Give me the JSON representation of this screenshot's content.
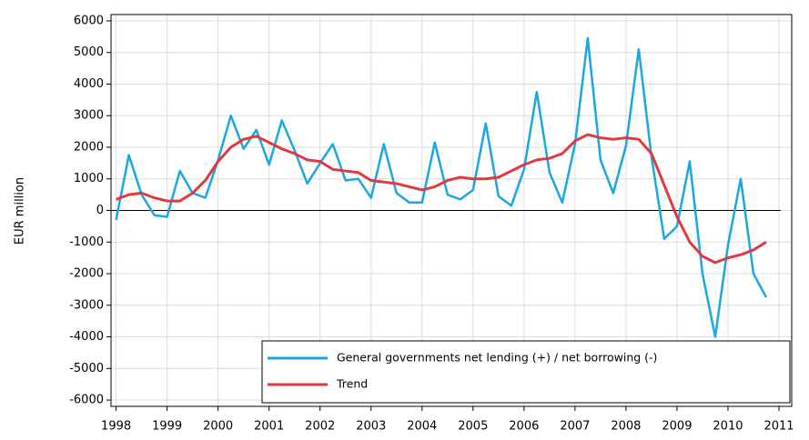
{
  "chart_data": {
    "type": "line",
    "y_label": "EUR million",
    "x": [
      1998,
      1998.25,
      1998.5,
      1998.75,
      1999,
      1999.25,
      1999.5,
      1999.75,
      2000,
      2000.25,
      2000.5,
      2000.75,
      2001,
      2001.25,
      2001.5,
      2001.75,
      2002,
      2002.25,
      2002.5,
      2002.75,
      2003,
      2003.25,
      2003.5,
      2003.75,
      2004,
      2004.25,
      2004.5,
      2004.75,
      2005,
      2005.25,
      2005.5,
      2005.75,
      2006,
      2006.25,
      2006.5,
      2006.75,
      2007,
      2007.25,
      2007.5,
      2007.75,
      2008,
      2008.25,
      2008.5,
      2008.75,
      2009,
      2009.25,
      2009.5,
      2009.75,
      2010,
      2010.25,
      2010.5,
      2010.75
    ],
    "series": [
      {
        "name": "General governments net lending (+) / net borrowing (-)",
        "color": "#1ba7e0",
        "values": [
          -300,
          1750,
          500,
          -150,
          -200,
          1250,
          550,
          400,
          1600,
          3000,
          1950,
          2550,
          1450,
          2850,
          1900,
          850,
          1500,
          2100,
          950,
          1000,
          400,
          2100,
          550,
          250,
          250,
          2150,
          500,
          350,
          650,
          2750,
          450,
          150,
          1300,
          3750,
          1200,
          250,
          2100,
          5450,
          1600,
          550,
          2050,
          5100,
          1700,
          -900,
          -500,
          1550,
          -2000,
          -4000,
          -1100,
          1000,
          -2000,
          -2750
        ]
      },
      {
        "name": "Trend",
        "color": "#e03a3e",
        "values": [
          350,
          500,
          550,
          400,
          300,
          300,
          550,
          950,
          1550,
          2000,
          2250,
          2350,
          2150,
          1950,
          1800,
          1600,
          1550,
          1300,
          1250,
          1200,
          950,
          900,
          850,
          750,
          650,
          750,
          950,
          1050,
          1000,
          1000,
          1050,
          1250,
          1450,
          1600,
          1650,
          1800,
          2200,
          2400,
          2300,
          2250,
          2300,
          2250,
          1800,
          800,
          -200,
          -1000,
          -1450,
          -1650,
          -1500,
          -1400,
          -1250,
          -1000
        ]
      }
    ],
    "xlim": [
      1997.9,
      2011.25
    ],
    "xticks": [
      1998,
      1999,
      2000,
      2001,
      2002,
      2003,
      2004,
      2005,
      2006,
      2007,
      2008,
      2009,
      2010,
      2011
    ],
    "ylim": [
      -6200,
      6200
    ],
    "yticks": [
      -6000,
      -5000,
      -4000,
      -3000,
      -2000,
      -1000,
      0,
      1000,
      2000,
      3000,
      4000,
      5000,
      6000
    ],
    "grid": true,
    "legend": "lower right"
  }
}
